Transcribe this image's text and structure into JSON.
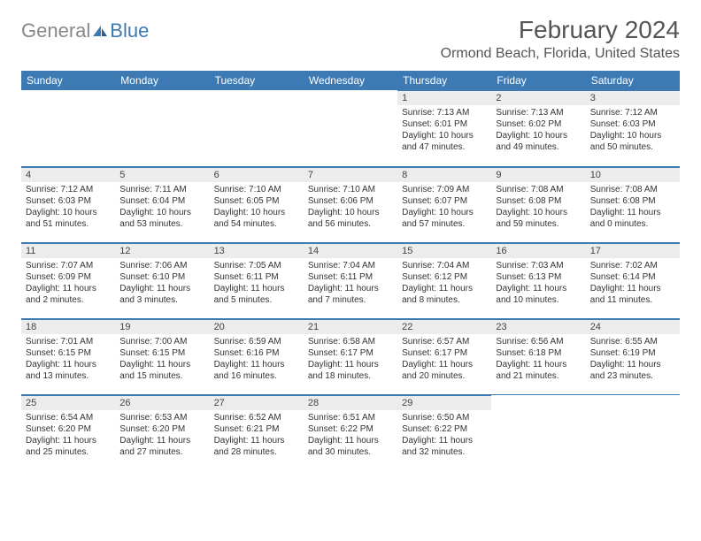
{
  "logo": {
    "text1": "General",
    "text2": "Blue"
  },
  "title": "February 2024",
  "location": "Ormond Beach, Florida, United States",
  "colors": {
    "header_bg": "#3d79b3",
    "header_fg": "#ffffff",
    "daynum_bg": "#ececec",
    "border": "#3d79b3",
    "text": "#333333",
    "logo_gray": "#888888",
    "logo_blue": "#3d79b3"
  },
  "weekdays": [
    "Sunday",
    "Monday",
    "Tuesday",
    "Wednesday",
    "Thursday",
    "Friday",
    "Saturday"
  ],
  "weeks": [
    [
      null,
      null,
      null,
      null,
      {
        "n": "1",
        "sr": "7:13 AM",
        "ss": "6:01 PM",
        "dl": "10 hours and 47 minutes."
      },
      {
        "n": "2",
        "sr": "7:13 AM",
        "ss": "6:02 PM",
        "dl": "10 hours and 49 minutes."
      },
      {
        "n": "3",
        "sr": "7:12 AM",
        "ss": "6:03 PM",
        "dl": "10 hours and 50 minutes."
      }
    ],
    [
      {
        "n": "4",
        "sr": "7:12 AM",
        "ss": "6:03 PM",
        "dl": "10 hours and 51 minutes."
      },
      {
        "n": "5",
        "sr": "7:11 AM",
        "ss": "6:04 PM",
        "dl": "10 hours and 53 minutes."
      },
      {
        "n": "6",
        "sr": "7:10 AM",
        "ss": "6:05 PM",
        "dl": "10 hours and 54 minutes."
      },
      {
        "n": "7",
        "sr": "7:10 AM",
        "ss": "6:06 PM",
        "dl": "10 hours and 56 minutes."
      },
      {
        "n": "8",
        "sr": "7:09 AM",
        "ss": "6:07 PM",
        "dl": "10 hours and 57 minutes."
      },
      {
        "n": "9",
        "sr": "7:08 AM",
        "ss": "6:08 PM",
        "dl": "10 hours and 59 minutes."
      },
      {
        "n": "10",
        "sr": "7:08 AM",
        "ss": "6:08 PM",
        "dl": "11 hours and 0 minutes."
      }
    ],
    [
      {
        "n": "11",
        "sr": "7:07 AM",
        "ss": "6:09 PM",
        "dl": "11 hours and 2 minutes."
      },
      {
        "n": "12",
        "sr": "7:06 AM",
        "ss": "6:10 PM",
        "dl": "11 hours and 3 minutes."
      },
      {
        "n": "13",
        "sr": "7:05 AM",
        "ss": "6:11 PM",
        "dl": "11 hours and 5 minutes."
      },
      {
        "n": "14",
        "sr": "7:04 AM",
        "ss": "6:11 PM",
        "dl": "11 hours and 7 minutes."
      },
      {
        "n": "15",
        "sr": "7:04 AM",
        "ss": "6:12 PM",
        "dl": "11 hours and 8 minutes."
      },
      {
        "n": "16",
        "sr": "7:03 AM",
        "ss": "6:13 PM",
        "dl": "11 hours and 10 minutes."
      },
      {
        "n": "17",
        "sr": "7:02 AM",
        "ss": "6:14 PM",
        "dl": "11 hours and 11 minutes."
      }
    ],
    [
      {
        "n": "18",
        "sr": "7:01 AM",
        "ss": "6:15 PM",
        "dl": "11 hours and 13 minutes."
      },
      {
        "n": "19",
        "sr": "7:00 AM",
        "ss": "6:15 PM",
        "dl": "11 hours and 15 minutes."
      },
      {
        "n": "20",
        "sr": "6:59 AM",
        "ss": "6:16 PM",
        "dl": "11 hours and 16 minutes."
      },
      {
        "n": "21",
        "sr": "6:58 AM",
        "ss": "6:17 PM",
        "dl": "11 hours and 18 minutes."
      },
      {
        "n": "22",
        "sr": "6:57 AM",
        "ss": "6:17 PM",
        "dl": "11 hours and 20 minutes."
      },
      {
        "n": "23",
        "sr": "6:56 AM",
        "ss": "6:18 PM",
        "dl": "11 hours and 21 minutes."
      },
      {
        "n": "24",
        "sr": "6:55 AM",
        "ss": "6:19 PM",
        "dl": "11 hours and 23 minutes."
      }
    ],
    [
      {
        "n": "25",
        "sr": "6:54 AM",
        "ss": "6:20 PM",
        "dl": "11 hours and 25 minutes."
      },
      {
        "n": "26",
        "sr": "6:53 AM",
        "ss": "6:20 PM",
        "dl": "11 hours and 27 minutes."
      },
      {
        "n": "27",
        "sr": "6:52 AM",
        "ss": "6:21 PM",
        "dl": "11 hours and 28 minutes."
      },
      {
        "n": "28",
        "sr": "6:51 AM",
        "ss": "6:22 PM",
        "dl": "11 hours and 30 minutes."
      },
      {
        "n": "29",
        "sr": "6:50 AM",
        "ss": "6:22 PM",
        "dl": "11 hours and 32 minutes."
      },
      null,
      null
    ]
  ]
}
